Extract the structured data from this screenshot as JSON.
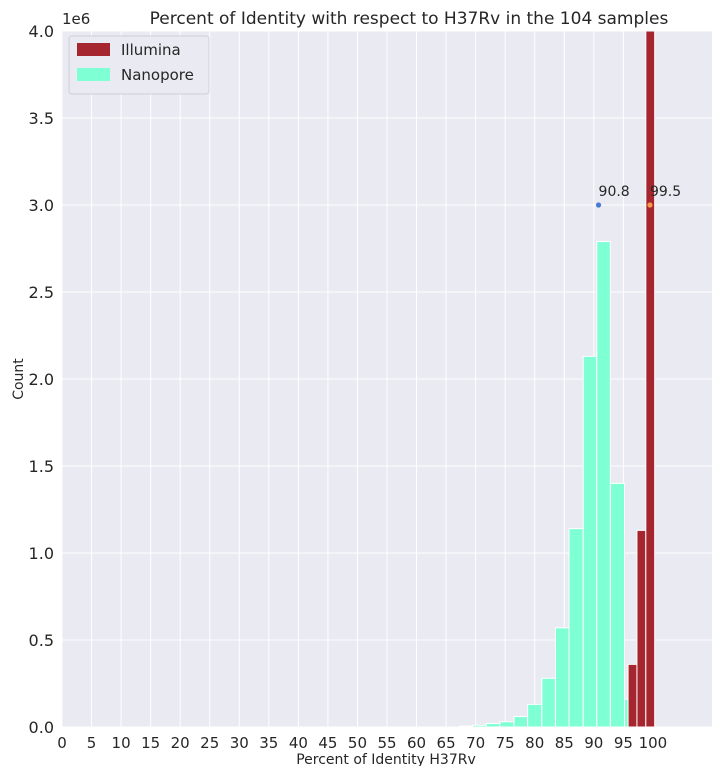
{
  "chart_data": {
    "type": "bar",
    "title": "Percent of Identity with respect to H37Rv in the 104 samples",
    "xlabel": "Percent of Identity H37Rv",
    "ylabel": "Count",
    "y_offset_label": "1e6",
    "xlim": [
      0,
      110
    ],
    "ylim": [
      0,
      4000000
    ],
    "xticks": [
      0,
      5,
      10,
      15,
      20,
      25,
      30,
      35,
      40,
      45,
      50,
      55,
      60,
      65,
      70,
      75,
      80,
      85,
      90,
      95,
      100
    ],
    "yticks": [
      0,
      500000,
      1000000,
      1500000,
      2000000,
      2500000,
      3000000,
      3500000,
      4000000
    ],
    "ytick_labels": [
      "0.0",
      "0.5",
      "1.0",
      "1.5",
      "2.0",
      "2.5",
      "3.0",
      "3.5",
      "4.0"
    ],
    "grid": true,
    "legend_position": "top-left",
    "series": [
      {
        "name": "Nanopore",
        "color": "#7fffd4",
        "bins": [
          {
            "x0": 67.3,
            "x1": 69.5,
            "value": 5000
          },
          {
            "x0": 69.5,
            "x1": 71.8,
            "value": 10000
          },
          {
            "x0": 71.8,
            "x1": 74.1,
            "value": 20000
          },
          {
            "x0": 74.1,
            "x1": 76.5,
            "value": 30000
          },
          {
            "x0": 76.5,
            "x1": 78.8,
            "value": 60000
          },
          {
            "x0": 78.8,
            "x1": 81.2,
            "value": 130000
          },
          {
            "x0": 81.2,
            "x1": 83.5,
            "value": 280000
          },
          {
            "x0": 83.5,
            "x1": 85.8,
            "value": 570000
          },
          {
            "x0": 85.8,
            "x1": 88.2,
            "value": 1140000
          },
          {
            "x0": 88.2,
            "x1": 90.5,
            "value": 2130000
          },
          {
            "x0": 90.5,
            "x1": 92.8,
            "value": 2790000
          },
          {
            "x0": 92.8,
            "x1": 95.2,
            "value": 1400000
          },
          {
            "x0": 95.2,
            "x1": 97.5,
            "value": 160000
          }
        ]
      },
      {
        "name": "Illumina",
        "color": "#a6262f",
        "bins": [
          {
            "x0": 95.8,
            "x1": 97.3,
            "value": 360000
          },
          {
            "x0": 97.3,
            "x1": 98.8,
            "value": 1130000
          },
          {
            "x0": 98.8,
            "x1": 100.3,
            "value": 4000000
          }
        ]
      }
    ],
    "annotations": [
      {
        "label": "90.8",
        "x": 90.8,
        "y": 3000000,
        "color": "#4a7bd4"
      },
      {
        "label": "99.5",
        "x": 99.5,
        "y": 3000000,
        "color": "#f59a4a"
      }
    ]
  }
}
